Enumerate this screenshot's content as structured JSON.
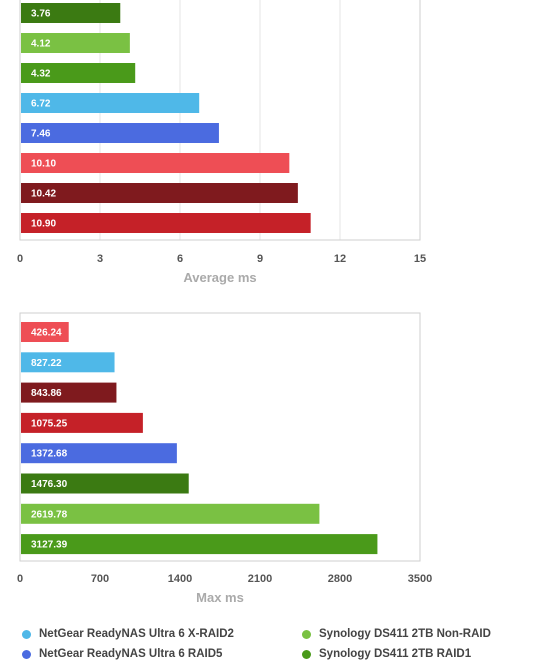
{
  "chart_data": [
    {
      "type": "bar",
      "orientation": "horizontal",
      "xlabel": "Average ms",
      "xlim": [
        0,
        15
      ],
      "ticks": [
        0,
        3,
        6,
        9,
        12,
        15
      ],
      "tick_labels": [
        "0",
        "3",
        "6",
        "9",
        "12",
        "15"
      ],
      "grid": true,
      "bars": [
        {
          "value": 3.76,
          "label": "3.76",
          "color": "#3b7a12"
        },
        {
          "value": 4.12,
          "label": "4.12",
          "color": "#7ac143"
        },
        {
          "value": 4.32,
          "label": "4.32",
          "color": "#4a9a1a"
        },
        {
          "value": 6.72,
          "label": "6.72",
          "color": "#4fb8e8"
        },
        {
          "value": 7.46,
          "label": "7.46",
          "color": "#4b6be0"
        },
        {
          "value": 10.1,
          "label": "10.10",
          "color": "#ee4e55"
        },
        {
          "value": 10.42,
          "label": "10.42",
          "color": "#7f1a1e"
        },
        {
          "value": 10.9,
          "label": "10.90",
          "color": "#c52128"
        }
      ]
    },
    {
      "type": "bar",
      "orientation": "horizontal",
      "xlabel": "Max ms",
      "xlim": [
        0,
        3500
      ],
      "ticks": [
        0,
        700,
        1400,
        2100,
        2800,
        3500
      ],
      "tick_labels": [
        "0",
        "700",
        "1400",
        "2100",
        "2800",
        "3500"
      ],
      "grid": false,
      "bars": [
        {
          "value": 426.24,
          "label": "426.24",
          "color": "#ee4e55"
        },
        {
          "value": 827.22,
          "label": "827.22",
          "color": "#4fb8e8"
        },
        {
          "value": 843.86,
          "label": "843.86",
          "color": "#7f1a1e"
        },
        {
          "value": 1075.25,
          "label": "1075.25",
          "color": "#c52128"
        },
        {
          "value": 1372.68,
          "label": "1372.68",
          "color": "#4b6be0"
        },
        {
          "value": 1476.3,
          "label": "1476.30",
          "color": "#3b7a12"
        },
        {
          "value": 2619.78,
          "label": "2619.78",
          "color": "#7ac143"
        },
        {
          "value": 3127.39,
          "label": "3127.39",
          "color": "#4a9a1a"
        }
      ]
    }
  ],
  "legend": [
    {
      "name": "NetGear ReadyNAS Ultra 6 X-RAID2",
      "color": "#4fb8e8"
    },
    {
      "name": "Synology DS411 2TB Non-RAID",
      "color": "#7ac143"
    },
    {
      "name": "NetGear ReadyNAS Ultra 6 RAID5",
      "color": "#4b6be0"
    },
    {
      "name": "Synology DS411 2TB RAID1",
      "color": "#4a9a1a"
    }
  ]
}
